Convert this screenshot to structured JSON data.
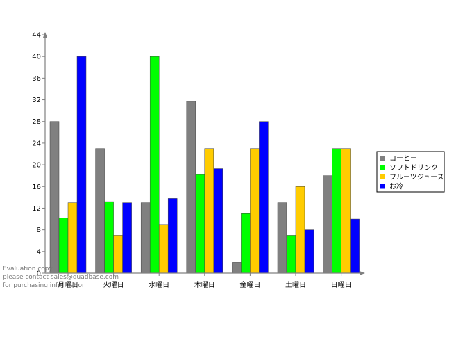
{
  "chart_data": {
    "type": "bar",
    "categories": [
      "月曜日",
      "火曜日",
      "水曜日",
      "木曜日",
      "金曜日",
      "土曜日",
      "日曜日"
    ],
    "series": [
      {
        "name": "コーヒー",
        "color": "#808080",
        "values": [
          28,
          23,
          13,
          31.7,
          2,
          13,
          18
        ]
      },
      {
        "name": "ソフトドリンク",
        "color": "#00ff00",
        "values": [
          10.2,
          13.2,
          40,
          18.2,
          11,
          7,
          23
        ]
      },
      {
        "name": "フルーツジュース",
        "color": "#ffcc00",
        "values": [
          13,
          7,
          9,
          23,
          23,
          16,
          23
        ]
      },
      {
        "name": "お冷",
        "color": "#0000ff",
        "values": [
          40,
          13,
          13.8,
          19.3,
          28,
          8,
          10
        ]
      }
    ],
    "yticks": [
      0,
      4,
      8,
      12,
      16,
      20,
      24,
      28,
      32,
      36,
      40,
      44
    ],
    "ylim": [
      0,
      44
    ],
    "legend_position": "right",
    "grid": false
  },
  "watermark": {
    "lines": [
      "Evaluation copy",
      "please contact sales@quadbase.com",
      "for purchasing information"
    ]
  }
}
